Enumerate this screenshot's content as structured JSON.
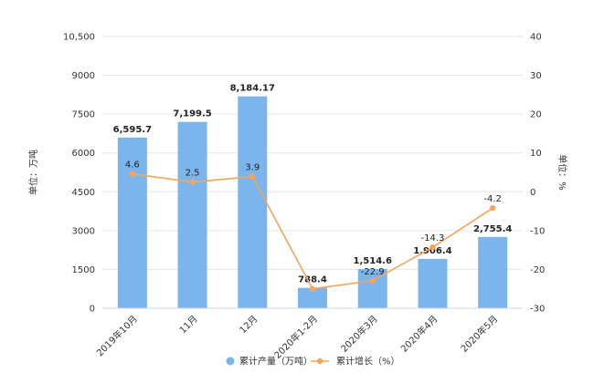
{
  "chart_data": {
    "type": "bar",
    "categories": [
      "2019年10月",
      "11月",
      "12月",
      "2020年1-2月",
      "2020年3月",
      "2020年4月",
      "2020年5月"
    ],
    "series": [
      {
        "name": "累计产量（万吨）",
        "type": "bar",
        "axis": "left",
        "values": [
          6595.7,
          7199.5,
          8184.17,
          788.4,
          1514.6,
          1906.4,
          2755.4
        ],
        "labels": [
          "6,595.7",
          "7,199.5",
          "8,184.17",
          "788.4",
          "1,514.6",
          "1,906.4",
          "2,755.4"
        ],
        "color": "#7cb5ec"
      },
      {
        "name": "累计增长（%）",
        "type": "line",
        "axis": "right",
        "values": [
          4.6,
          2.5,
          3.9,
          -25.0,
          -22.9,
          -14.3,
          -4.2
        ],
        "labels": [
          "4.6",
          "2.5",
          "3.9",
          "",
          "-22.9",
          "-14.3",
          "-4.2"
        ],
        "color": "#f7a35c"
      }
    ],
    "y_left": {
      "label": "单位：万吨",
      "ylim": [
        0,
        10500
      ],
      "ticks": [
        0,
        1500,
        3000,
        4500,
        6000,
        7500,
        9000,
        10500
      ],
      "tick_labels": [
        "0",
        "1500",
        "3000",
        "4500",
        "6000",
        "7500",
        "9000",
        "10,500"
      ]
    },
    "y_right": {
      "label": "单位：%",
      "ylim": [
        -30,
        40
      ],
      "ticks": [
        -30,
        -20,
        -10,
        0,
        10,
        20,
        30,
        40
      ],
      "tick_labels": [
        "-30",
        "-20",
        "-10",
        "0",
        "10",
        "20",
        "30",
        "40"
      ]
    },
    "grid": true,
    "legend_position": "bottom"
  }
}
